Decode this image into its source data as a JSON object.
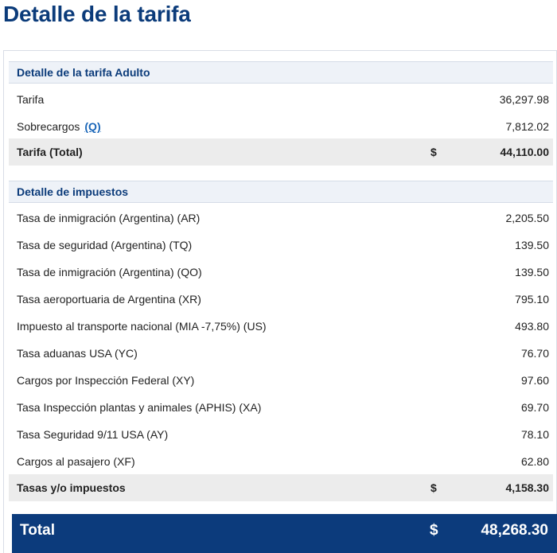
{
  "page": {
    "title": "Detalle de la tarifa"
  },
  "fare": {
    "header": "Detalle de la tarifa Adulto",
    "rows": [
      {
        "label": "Tarifa",
        "amount": "36,297.98"
      },
      {
        "label": "Sobrecargos",
        "link": "(Q)",
        "amount": "7,812.02"
      }
    ],
    "total": {
      "label": "Tarifa (Total)",
      "currency": "$",
      "amount": "44,110.00"
    }
  },
  "taxes": {
    "header": "Detalle de impuestos",
    "rows": [
      {
        "label": "Tasa de inmigración (Argentina) (AR)",
        "amount": "2,205.50"
      },
      {
        "label": "Tasa de seguridad (Argentina) (TQ)",
        "amount": "139.50"
      },
      {
        "label": "Tasa de inmigración (Argentina) (QO)",
        "amount": "139.50"
      },
      {
        "label": "Tasa aeroportuaria de Argentina (XR)",
        "amount": "795.10"
      },
      {
        "label": "Impuesto al transporte nacional (MIA -7,75%) (US)",
        "amount": "493.80"
      },
      {
        "label": "Tasa aduanas USA (YC)",
        "amount": "76.70"
      },
      {
        "label": "Cargos por Inspección Federal (XY)",
        "amount": "97.60"
      },
      {
        "label": "Tasa Inspección plantas y animales (APHIS) (XA)",
        "amount": "69.70"
      },
      {
        "label": "Tasa Seguridad 9/11 USA (AY)",
        "amount": "78.10"
      },
      {
        "label": "Cargos al pasajero (XF)",
        "amount": "62.80"
      }
    ],
    "total": {
      "label": "Tasas y/o impuestos",
      "currency": "$",
      "amount": "4,158.30"
    }
  },
  "grand_total": {
    "label": "Total",
    "currency": "$",
    "amount": "48,268.30"
  },
  "colors": {
    "brand": "#0c3b7c",
    "link": "#1a66b8",
    "header_bg": "#eef2f8",
    "total_row_bg": "#ececec"
  }
}
